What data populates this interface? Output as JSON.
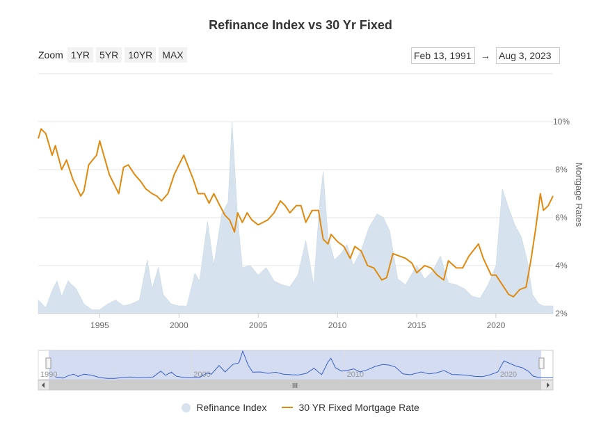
{
  "chart": {
    "title": "Refinance Index vs 30 Yr Fixed",
    "zoom_label": "Zoom",
    "zoom_buttons": [
      "1YR",
      "5YR",
      "10YR",
      "MAX"
    ],
    "range_from": "Feb 13, 1991",
    "range_to": "Aug 3, 2023",
    "range_arrow": "→",
    "navigator_grip": "III"
  },
  "colors": {
    "mortgage_line": "#e0890f",
    "refi_area": "#d6e3ee",
    "navigator_line": "#3a5fc7",
    "navigator_fill": "#c6d0ee"
  },
  "chart_data": {
    "type": "line",
    "title": "Refinance Index vs 30 Yr Fixed",
    "xlabel": "",
    "ylabel": "Mortgage Rates",
    "x_ticks": [
      1995,
      2000,
      2005,
      2010,
      2015,
      2020
    ],
    "y_ticks": [
      "2%",
      "4%",
      "6%",
      "8%",
      "10%"
    ],
    "ylim": [
      2,
      10
    ],
    "xlim": [
      1991.12,
      2023.6
    ],
    "navigator_ticks": [
      "1990",
      "2000",
      "2010",
      "2020"
    ],
    "legend": [
      "Refinance Index",
      "30 YR Fixed Mortgage Rate"
    ],
    "series": [
      {
        "name": "30 YR Fixed Mortgage Rate",
        "kind": "line",
        "points": [
          [
            1991.12,
            9.3
          ],
          [
            1991.3,
            9.7
          ],
          [
            1991.6,
            9.5
          ],
          [
            1992.0,
            8.6
          ],
          [
            1992.2,
            9.0
          ],
          [
            1992.6,
            8.0
          ],
          [
            1992.9,
            8.4
          ],
          [
            1993.3,
            7.6
          ],
          [
            1993.8,
            6.9
          ],
          [
            1994.0,
            7.1
          ],
          [
            1994.3,
            8.2
          ],
          [
            1994.8,
            8.6
          ],
          [
            1995.0,
            9.2
          ],
          [
            1995.3,
            8.5
          ],
          [
            1995.6,
            7.8
          ],
          [
            1995.9,
            7.4
          ],
          [
            1996.2,
            7.0
          ],
          [
            1996.5,
            8.1
          ],
          [
            1996.8,
            8.2
          ],
          [
            1997.2,
            7.8
          ],
          [
            1997.6,
            7.5
          ],
          [
            1997.9,
            7.2
          ],
          [
            1998.3,
            7.0
          ],
          [
            1998.6,
            6.9
          ],
          [
            1998.9,
            6.7
          ],
          [
            1999.3,
            7.0
          ],
          [
            1999.7,
            7.8
          ],
          [
            2000.0,
            8.2
          ],
          [
            2000.3,
            8.6
          ],
          [
            2000.6,
            8.1
          ],
          [
            2000.9,
            7.6
          ],
          [
            2001.2,
            7.0
          ],
          [
            2001.6,
            7.0
          ],
          [
            2001.9,
            6.6
          ],
          [
            2002.2,
            7.0
          ],
          [
            2002.5,
            6.6
          ],
          [
            2002.9,
            6.1
          ],
          [
            2003.2,
            5.9
          ],
          [
            2003.5,
            5.4
          ],
          [
            2003.7,
            6.2
          ],
          [
            2004.0,
            5.8
          ],
          [
            2004.3,
            6.2
          ],
          [
            2004.6,
            5.9
          ],
          [
            2005.0,
            5.7
          ],
          [
            2005.3,
            5.8
          ],
          [
            2005.6,
            5.9
          ],
          [
            2006.0,
            6.2
          ],
          [
            2006.4,
            6.7
          ],
          [
            2006.7,
            6.5
          ],
          [
            2007.0,
            6.2
          ],
          [
            2007.4,
            6.5
          ],
          [
            2007.7,
            6.5
          ],
          [
            2008.0,
            5.8
          ],
          [
            2008.4,
            6.3
          ],
          [
            2008.8,
            6.3
          ],
          [
            2009.1,
            5.1
          ],
          [
            2009.4,
            4.9
          ],
          [
            2009.6,
            5.3
          ],
          [
            2010.0,
            5.0
          ],
          [
            2010.4,
            4.8
          ],
          [
            2010.8,
            4.3
          ],
          [
            2011.1,
            4.8
          ],
          [
            2011.5,
            4.6
          ],
          [
            2011.9,
            4.0
          ],
          [
            2012.3,
            3.9
          ],
          [
            2012.8,
            3.4
          ],
          [
            2013.1,
            3.5
          ],
          [
            2013.5,
            4.5
          ],
          [
            2013.9,
            4.4
          ],
          [
            2014.3,
            4.3
          ],
          [
            2014.7,
            4.1
          ],
          [
            2015.0,
            3.7
          ],
          [
            2015.5,
            4.0
          ],
          [
            2015.9,
            3.9
          ],
          [
            2016.3,
            3.6
          ],
          [
            2016.7,
            3.4
          ],
          [
            2017.0,
            4.2
          ],
          [
            2017.5,
            3.9
          ],
          [
            2017.9,
            3.9
          ],
          [
            2018.3,
            4.4
          ],
          [
            2018.9,
            4.9
          ],
          [
            2019.2,
            4.3
          ],
          [
            2019.7,
            3.6
          ],
          [
            2020.0,
            3.6
          ],
          [
            2020.4,
            3.2
          ],
          [
            2020.8,
            2.8
          ],
          [
            2021.1,
            2.7
          ],
          [
            2021.5,
            3.0
          ],
          [
            2021.9,
            3.1
          ],
          [
            2022.2,
            4.2
          ],
          [
            2022.5,
            5.5
          ],
          [
            2022.8,
            7.0
          ],
          [
            2023.0,
            6.3
          ],
          [
            2023.3,
            6.5
          ],
          [
            2023.6,
            6.9
          ]
        ]
      },
      {
        "name": "Refinance Index",
        "kind": "area",
        "scale": "relative 0-1",
        "points": [
          [
            1991.12,
            0.07
          ],
          [
            1991.6,
            0.03
          ],
          [
            1992.0,
            0.12
          ],
          [
            1992.3,
            0.17
          ],
          [
            1992.6,
            0.09
          ],
          [
            1993.0,
            0.17
          ],
          [
            1993.5,
            0.13
          ],
          [
            1994.0,
            0.05
          ],
          [
            1994.5,
            0.02
          ],
          [
            1995.0,
            0.02
          ],
          [
            1995.5,
            0.05
          ],
          [
            1996.0,
            0.07
          ],
          [
            1996.5,
            0.04
          ],
          [
            1997.0,
            0.05
          ],
          [
            1997.5,
            0.07
          ],
          [
            1998.0,
            0.28
          ],
          [
            1998.3,
            0.13
          ],
          [
            1998.7,
            0.24
          ],
          [
            1999.0,
            0.1
          ],
          [
            1999.5,
            0.05
          ],
          [
            2000.0,
            0.04
          ],
          [
            2000.5,
            0.04
          ],
          [
            2001.0,
            0.21
          ],
          [
            2001.3,
            0.17
          ],
          [
            2001.8,
            0.48
          ],
          [
            2002.2,
            0.25
          ],
          [
            2002.7,
            0.52
          ],
          [
            2003.1,
            0.58
          ],
          [
            2003.35,
            1.0
          ],
          [
            2003.7,
            0.5
          ],
          [
            2004.0,
            0.24
          ],
          [
            2004.5,
            0.25
          ],
          [
            2005.0,
            0.2
          ],
          [
            2005.5,
            0.24
          ],
          [
            2006.0,
            0.17
          ],
          [
            2006.5,
            0.15
          ],
          [
            2007.0,
            0.14
          ],
          [
            2007.5,
            0.2
          ],
          [
            2008.0,
            0.38
          ],
          [
            2008.5,
            0.15
          ],
          [
            2008.9,
            0.6
          ],
          [
            2009.1,
            0.74
          ],
          [
            2009.4,
            0.4
          ],
          [
            2009.8,
            0.28
          ],
          [
            2010.2,
            0.31
          ],
          [
            2010.6,
            0.36
          ],
          [
            2011.0,
            0.25
          ],
          [
            2011.5,
            0.33
          ],
          [
            2012.0,
            0.45
          ],
          [
            2012.5,
            0.52
          ],
          [
            2012.9,
            0.5
          ],
          [
            2013.3,
            0.43
          ],
          [
            2013.8,
            0.18
          ],
          [
            2014.3,
            0.15
          ],
          [
            2015.0,
            0.25
          ],
          [
            2015.5,
            0.18
          ],
          [
            2016.0,
            0.22
          ],
          [
            2016.5,
            0.3
          ],
          [
            2017.0,
            0.16
          ],
          [
            2017.5,
            0.15
          ],
          [
            2018.0,
            0.13
          ],
          [
            2018.5,
            0.09
          ],
          [
            2019.0,
            0.08
          ],
          [
            2019.5,
            0.15
          ],
          [
            2020.0,
            0.25
          ],
          [
            2020.4,
            0.65
          ],
          [
            2020.8,
            0.55
          ],
          [
            2021.2,
            0.46
          ],
          [
            2021.6,
            0.4
          ],
          [
            2022.0,
            0.27
          ],
          [
            2022.3,
            0.1
          ],
          [
            2022.7,
            0.05
          ],
          [
            2023.0,
            0.04
          ],
          [
            2023.6,
            0.04
          ]
        ]
      }
    ]
  },
  "legend": {
    "refi_label": "Refinance Index",
    "mortgage_label": "30 YR Fixed Mortgage Rate"
  }
}
